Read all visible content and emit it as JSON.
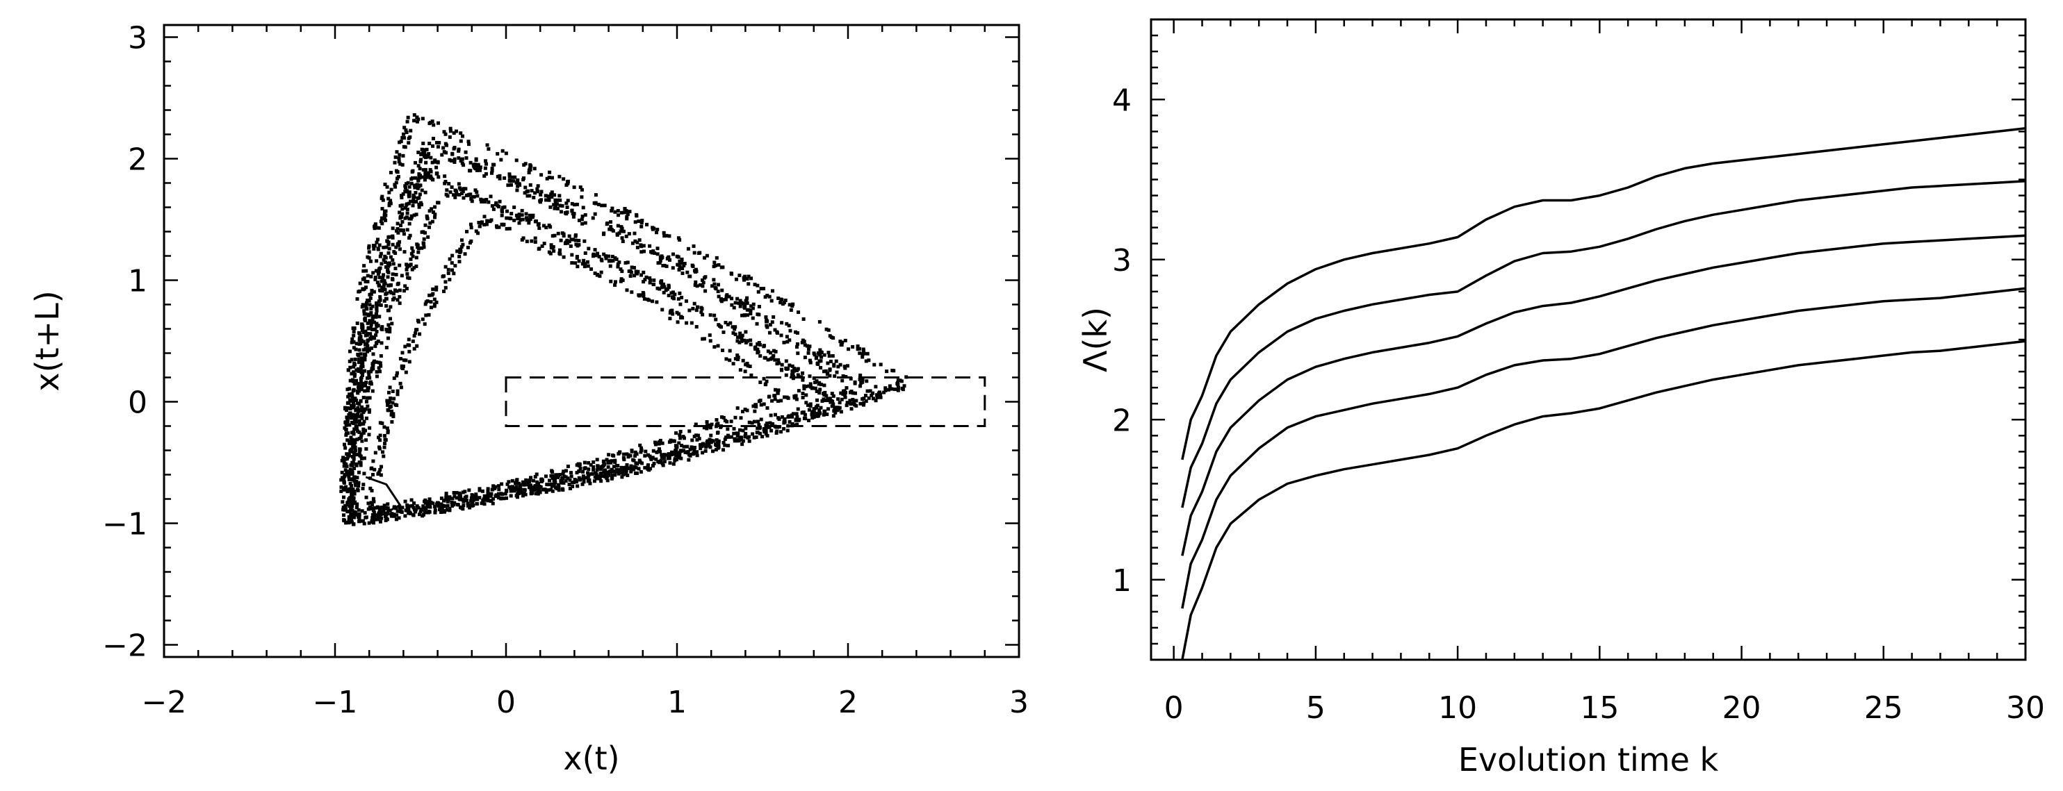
{
  "chart_data": [
    {
      "type": "scatter",
      "title": "",
      "xlabel": "x(t)",
      "ylabel": "x(t+L)",
      "xlim": [
        -2,
        3
      ],
      "ylim": [
        -2.1,
        3.1
      ],
      "xticks": [
        "−2",
        "−1",
        "0",
        "1",
        "2",
        "3"
      ],
      "yticks": [
        "−2",
        "−1",
        "0",
        "1",
        "2",
        "3"
      ],
      "grid": false,
      "legend": "none",
      "attractor_loops": [
        {
          "vertices": [
            [
              -0.92,
              -0.98
            ],
            [
              -0.55,
              2.35
            ],
            [
              2.35,
              0.15
            ]
          ],
          "points": 600
        },
        {
          "vertices": [
            [
              -0.95,
              -1.0
            ],
            [
              -0.45,
              2.15
            ],
            [
              2.2,
              0.05
            ]
          ],
          "points": 600
        },
        {
          "vertices": [
            [
              -0.9,
              -0.95
            ],
            [
              -0.4,
              2.05
            ],
            [
              2.05,
              0.1
            ]
          ],
          "points": 600
        },
        {
          "vertices": [
            [
              -0.93,
              -1.0
            ],
            [
              -0.5,
              1.9
            ],
            [
              1.95,
              0.0
            ]
          ],
          "points": 500
        },
        {
          "vertices": [
            [
              -0.88,
              -0.92
            ],
            [
              -0.35,
              1.75
            ],
            [
              1.8,
              0.1
            ]
          ],
          "points": 450
        },
        {
          "vertices": [
            [
              -0.8,
              -0.9
            ],
            [
              -0.15,
              1.5
            ],
            [
              1.6,
              0.05
            ]
          ],
          "points": 400
        }
      ],
      "inner_curl": {
        "points": [
          [
            -0.82,
            -0.62
          ],
          [
            -0.7,
            -0.68
          ],
          [
            -0.62,
            -0.85
          ],
          [
            -0.75,
            -0.95
          ]
        ]
      },
      "annotation_box": {
        "x": [
          0,
          2.8
        ],
        "y": [
          -0.2,
          0.2
        ],
        "style": "dashed"
      }
    },
    {
      "type": "line",
      "title": "",
      "xlabel": "Evolution time k",
      "ylabel": "Λ(k)",
      "xlim": [
        -0.8,
        30
      ],
      "ylim": [
        0.5,
        4.5
      ],
      "xticks": [
        "0",
        "5",
        "10",
        "15",
        "20",
        "25",
        "30"
      ],
      "yticks": [
        "1",
        "2",
        "3",
        "4"
      ],
      "grid": false,
      "legend": "none",
      "x": [
        0.3,
        0.6,
        1,
        1.5,
        2,
        3,
        4,
        5,
        6,
        7,
        8,
        9,
        10,
        11,
        12,
        13,
        14,
        15,
        16,
        17,
        18,
        19,
        20,
        21,
        22,
        23,
        24,
        25,
        26,
        27,
        28,
        29,
        30
      ],
      "series": [
        {
          "values": [
            1.75,
            2.0,
            2.15,
            2.4,
            2.55,
            2.72,
            2.85,
            2.94,
            3.0,
            3.04,
            3.07,
            3.1,
            3.14,
            3.25,
            3.33,
            3.37,
            3.37,
            3.4,
            3.45,
            3.52,
            3.57,
            3.6,
            3.62,
            3.64,
            3.66,
            3.68,
            3.7,
            3.72,
            3.74,
            3.76,
            3.78,
            3.8,
            3.82
          ]
        },
        {
          "values": [
            1.45,
            1.7,
            1.85,
            2.1,
            2.25,
            2.42,
            2.55,
            2.63,
            2.68,
            2.72,
            2.75,
            2.78,
            2.8,
            2.9,
            2.99,
            3.04,
            3.05,
            3.08,
            3.13,
            3.19,
            3.24,
            3.28,
            3.31,
            3.34,
            3.37,
            3.39,
            3.41,
            3.43,
            3.45,
            3.46,
            3.47,
            3.48,
            3.49
          ]
        },
        {
          "values": [
            1.15,
            1.4,
            1.55,
            1.8,
            1.95,
            2.12,
            2.25,
            2.33,
            2.38,
            2.42,
            2.45,
            2.48,
            2.52,
            2.6,
            2.67,
            2.71,
            2.73,
            2.77,
            2.82,
            2.87,
            2.91,
            2.95,
            2.98,
            3.01,
            3.04,
            3.06,
            3.08,
            3.1,
            3.11,
            3.12,
            3.13,
            3.14,
            3.15
          ]
        },
        {
          "values": [
            0.82,
            1.1,
            1.25,
            1.5,
            1.65,
            1.82,
            1.95,
            2.02,
            2.06,
            2.1,
            2.13,
            2.16,
            2.2,
            2.28,
            2.34,
            2.37,
            2.38,
            2.41,
            2.46,
            2.51,
            2.55,
            2.59,
            2.62,
            2.65,
            2.68,
            2.7,
            2.72,
            2.74,
            2.75,
            2.76,
            2.78,
            2.8,
            2.82
          ]
        },
        {
          "values": [
            0.5,
            0.78,
            0.95,
            1.2,
            1.35,
            1.5,
            1.6,
            1.65,
            1.69,
            1.72,
            1.75,
            1.78,
            1.82,
            1.9,
            1.97,
            2.02,
            2.04,
            2.07,
            2.12,
            2.17,
            2.21,
            2.25,
            2.28,
            2.31,
            2.34,
            2.36,
            2.38,
            2.4,
            2.42,
            2.43,
            2.45,
            2.47,
            2.49
          ]
        }
      ]
    }
  ]
}
